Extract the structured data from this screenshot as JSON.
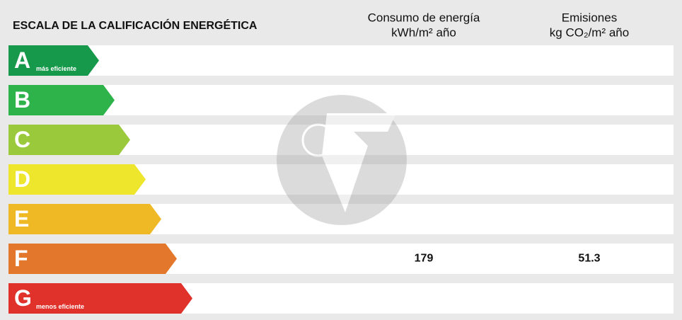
{
  "header": {
    "title": "ESCALA DE LA CALIFICACIÓN ENERGÉTICA",
    "columns": [
      {
        "title": "Consumo de energía",
        "unit": "kWh/m² año"
      },
      {
        "title": "Emisiones",
        "unit": "kg CO₂/m² año"
      }
    ]
  },
  "table": {
    "rows": [
      {
        "letter": "A",
        "color": "#17994b",
        "note": "más eficiente"
      },
      {
        "letter": "B",
        "color": "#2db34a"
      },
      {
        "letter": "C",
        "color": "#9bc93c"
      },
      {
        "letter": "D",
        "color": "#ede62c"
      },
      {
        "letter": "E",
        "color": "#efb925"
      },
      {
        "letter": "F",
        "color": "#e3772b",
        "energy": 179,
        "emissions": 51.3
      },
      {
        "letter": "G",
        "color": "#e0312b",
        "note": "menos eficiente"
      }
    ]
  }
}
